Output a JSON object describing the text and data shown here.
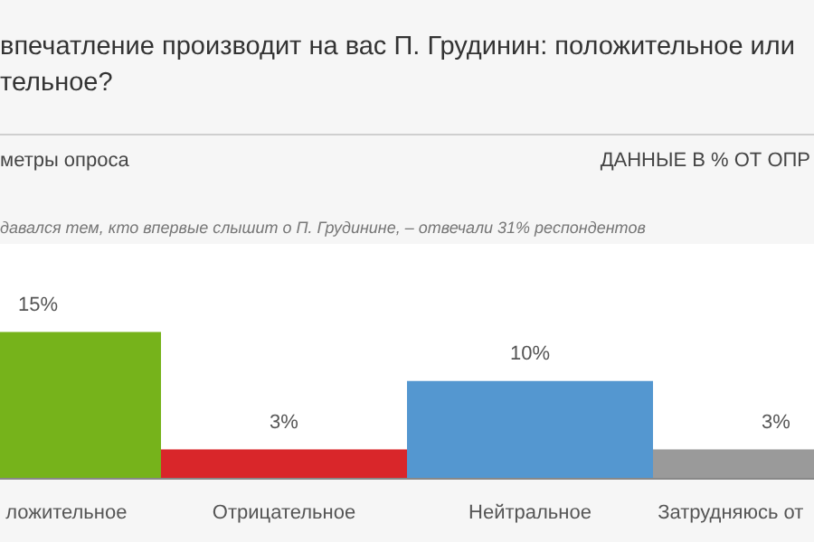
{
  "chart_data": {
    "type": "bar",
    "title": "впечатление производит на вас П. Грудинин: положительное или\nтельное?",
    "annotations": [
      "метры опроса",
      "ДАННЫЕ В % ОТ ОПР",
      "давался тем, кто впервые слышит о П. Грудинине, – отвечали 31% респондентов"
    ],
    "categories": [
      "ложительное",
      "Отрицательное",
      "Нейтральное",
      "Затрудняюсь от"
    ],
    "values": [
      15,
      3,
      10,
      3
    ],
    "colors": [
      "#76b31b",
      "#d9262a",
      "#5497d0",
      "#9a9a9a"
    ],
    "value_labels": [
      "15%",
      "3%",
      "10%",
      "3%"
    ]
  }
}
